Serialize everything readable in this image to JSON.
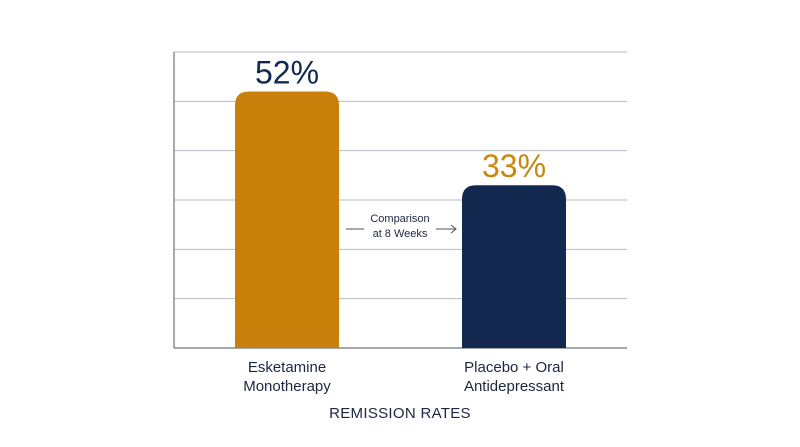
{
  "chart_data": {
    "type": "bar",
    "categories": [
      "Esketamine\nMonotherapy",
      "Placebo + Oral\nAntidepressant"
    ],
    "values": [
      52,
      33
    ],
    "value_labels": [
      "52%",
      "33%"
    ],
    "colors": [
      "#c8800a",
      "#12284f"
    ],
    "value_label_colors": [
      "#12284f",
      "#c8880e"
    ],
    "xlabel": "REMISSION RATES",
    "ylabel": "",
    "ylim": [
      0,
      60
    ],
    "grid": true,
    "annotation": {
      "lines": [
        "Comparison",
        "at 8 Weeks"
      ]
    }
  }
}
